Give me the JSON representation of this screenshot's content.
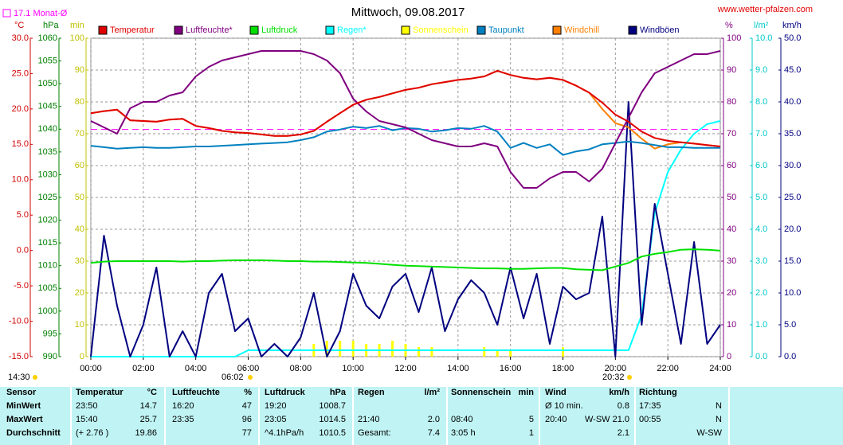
{
  "chart_data": {
    "type": "line",
    "title": "Mittwoch, 09.08.2017",
    "site": "www.wetter-pfalzen.com",
    "current_time": "14:30",
    "sunrise": "06:02",
    "sunset": "20:32",
    "month_avg": {
      "value": 17.1,
      "label": "17.1 Monat-Ø",
      "color": "#ff00ff",
      "axis": "temp"
    },
    "grid": true,
    "xlim": [
      0,
      24
    ],
    "xticks": [
      {
        "value": 0,
        "label": "00:00"
      },
      {
        "value": 2,
        "label": "02:00"
      },
      {
        "value": 4,
        "label": "04:00"
      },
      {
        "value": 6,
        "label": "06:00"
      },
      {
        "value": 8,
        "label": "08:00"
      },
      {
        "value": 10,
        "label": "10:00"
      },
      {
        "value": 12,
        "label": "12:00"
      },
      {
        "value": 14,
        "label": "14:00"
      },
      {
        "value": 16,
        "label": "16:00"
      },
      {
        "value": 18,
        "label": "18:00"
      },
      {
        "value": 20,
        "label": "20:00"
      },
      {
        "value": 22,
        "label": "22:00"
      },
      {
        "value": 24,
        "label": "24:00"
      }
    ],
    "axes": {
      "temp": {
        "label": "°C",
        "color": "#d00000",
        "ylim": [
          -15,
          30
        ],
        "yticks": [
          {
            "value": 30,
            "label": "30.0"
          },
          {
            "value": 25,
            "label": "25.0"
          },
          {
            "value": 20,
            "label": "20.0"
          },
          {
            "value": 15,
            "label": "15.0"
          },
          {
            "value": 10,
            "label": "10.0"
          },
          {
            "value": 5,
            "label": "5.0"
          },
          {
            "value": 0,
            "label": "0.0"
          },
          {
            "value": -5,
            "label": "-5.0"
          },
          {
            "value": -10,
            "label": "-10.0"
          },
          {
            "value": -15,
            "label": "-15.0"
          }
        ]
      },
      "press": {
        "label": "hPa",
        "color": "#008000",
        "ylim": [
          990,
          1060
        ],
        "yticks": [
          1060,
          1055,
          1050,
          1045,
          1040,
          1035,
          1030,
          1025,
          1020,
          1015,
          1010,
          1005,
          1000,
          995,
          990
        ]
      },
      "min": {
        "label": "min",
        "color": "#c0c000",
        "ylim": [
          0,
          100
        ],
        "yticks": [
          100,
          90,
          80,
          70,
          60,
          50,
          40,
          30,
          20,
          10,
          0
        ]
      },
      "pct": {
        "label": "%",
        "color": "#800080",
        "ylim": [
          0,
          100
        ],
        "yticks": [
          100,
          90,
          80,
          70,
          60,
          50,
          40,
          30,
          20,
          10,
          0
        ]
      },
      "rain": {
        "label": "l/m²",
        "color": "#00c8c8",
        "ylim": [
          0,
          10
        ],
        "yticks": [
          {
            "value": 10,
            "label": "10.0"
          },
          {
            "value": 9,
            "label": "9.0"
          },
          {
            "value": 8,
            "label": "8.0"
          },
          {
            "value": 7,
            "label": "7.0"
          },
          {
            "value": 6,
            "label": "6.0"
          },
          {
            "value": 5,
            "label": "5.0"
          },
          {
            "value": 4,
            "label": "4.0"
          },
          {
            "value": 3,
            "label": "3.0"
          },
          {
            "value": 2,
            "label": "2.0"
          },
          {
            "value": 1,
            "label": "1.0"
          },
          {
            "value": 0,
            "label": "0.0"
          }
        ]
      },
      "wind": {
        "label": "km/h",
        "color": "#000080",
        "ylim": [
          0,
          50
        ],
        "yticks": [
          {
            "value": 50,
            "label": "50.0"
          },
          {
            "value": 45,
            "label": "45.0"
          },
          {
            "value": 40,
            "label": "40.0"
          },
          {
            "value": 35,
            "label": "35.0"
          },
          {
            "value": 30,
            "label": "30.0"
          },
          {
            "value": 25,
            "label": "25.0"
          },
          {
            "value": 20,
            "label": "20.0"
          },
          {
            "value": 15,
            "label": "15.0"
          },
          {
            "value": 10,
            "label": "10.0"
          },
          {
            "value": 5,
            "label": "5.0"
          },
          {
            "value": 0,
            "label": "0.0"
          }
        ]
      }
    },
    "x": [
      0,
      0.5,
      1,
      1.5,
      2,
      2.5,
      3,
      3.5,
      4,
      4.5,
      5,
      5.5,
      6,
      6.5,
      7,
      7.5,
      8,
      8.5,
      9,
      9.5,
      10,
      10.5,
      11,
      11.5,
      12,
      12.5,
      13,
      13.5,
      14,
      14.5,
      15,
      15.5,
      16,
      16.5,
      17,
      17.5,
      18,
      18.5,
      19,
      19.5,
      20,
      20.5,
      21,
      21.5,
      22,
      22.5,
      23,
      23.5,
      24
    ],
    "series": [
      {
        "name": "Temperatur",
        "color": "#e00000",
        "axis": "temp",
        "kind": "line",
        "values": [
          19.4,
          19.7,
          19.9,
          18.4,
          18.3,
          18.2,
          18.5,
          18.6,
          17.6,
          17.3,
          16.9,
          16.7,
          16.6,
          16.4,
          16.2,
          16.2,
          16.4,
          16.9,
          18.2,
          19.4,
          20.6,
          21.3,
          21.7,
          22.2,
          22.7,
          23.0,
          23.5,
          23.8,
          24.1,
          24.3,
          24.6,
          25.4,
          24.8,
          24.4,
          24.2,
          24.4,
          24.1,
          23.3,
          22.3,
          20.9,
          19.2,
          18.2,
          16.8,
          15.9,
          15.5,
          15.3,
          15.1,
          14.9,
          14.7
        ]
      },
      {
        "name": "Luftfeuchte*",
        "color": "#800080",
        "axis": "pct",
        "kind": "line",
        "values": [
          74,
          72,
          70,
          78,
          80,
          80,
          82,
          83,
          88,
          91,
          93,
          94,
          95,
          96,
          96,
          96,
          96,
          95,
          93,
          89,
          81,
          77,
          74,
          73,
          72,
          70,
          68,
          67,
          66,
          66,
          67,
          66,
          58,
          53,
          53,
          56,
          58,
          58,
          55,
          59,
          67,
          75,
          83,
          89,
          91,
          93,
          95,
          95,
          96
        ]
      },
      {
        "name": "Luftdruck",
        "color": "#00e000",
        "axis": "press",
        "kind": "line",
        "values": [
          1010.6,
          1010.9,
          1011.0,
          1011.0,
          1011.0,
          1011.0,
          1011.0,
          1010.9,
          1011.0,
          1011.0,
          1011.1,
          1011.2,
          1011.2,
          1011.2,
          1011.1,
          1011.0,
          1011.0,
          1010.9,
          1010.9,
          1010.8,
          1010.7,
          1010.6,
          1010.4,
          1010.2,
          1010.0,
          1009.9,
          1009.8,
          1009.7,
          1009.6,
          1009.5,
          1009.4,
          1009.4,
          1009.3,
          1009.3,
          1009.4,
          1009.5,
          1009.5,
          1009.2,
          1009.1,
          1009.0,
          1009.8,
          1010.6,
          1012.0,
          1012.6,
          1013.0,
          1013.5,
          1013.6,
          1013.5,
          1013.3
        ]
      },
      {
        "name": "Regen*",
        "color": "#00ffff",
        "axis": "rain",
        "kind": "line",
        "values": [
          0,
          0,
          0,
          0,
          0,
          0,
          0,
          0,
          0,
          0,
          0,
          0,
          0.2,
          0.2,
          0.2,
          0.2,
          0.2,
          0.2,
          0.2,
          0.2,
          0.2,
          0.2,
          0.2,
          0.2,
          0.2,
          0.2,
          0.2,
          0.2,
          0.2,
          0.2,
          0.2,
          0.2,
          0.2,
          0.2,
          0.2,
          0.2,
          0.2,
          0.2,
          0.2,
          0.2,
          0.2,
          0.2,
          1.3,
          4.5,
          5.8,
          6.5,
          7.0,
          7.3,
          7.4
        ]
      },
      {
        "name": "Sonnenschein",
        "color": "#ffff00",
        "axis": "min",
        "kind": "bar",
        "values": [
          0,
          0,
          0,
          0,
          0,
          0,
          0,
          0,
          0,
          0,
          0,
          0,
          0,
          0,
          0,
          0,
          0,
          4,
          5,
          5,
          5,
          4,
          4,
          5,
          4,
          3,
          3,
          0,
          0,
          0,
          3,
          2,
          2,
          0,
          0,
          0,
          3,
          0,
          0,
          0,
          0,
          0,
          0,
          0,
          0,
          0,
          0,
          0,
          0
        ]
      },
      {
        "name": "Taupunkt",
        "color": "#0080c0",
        "axis": "temp",
        "kind": "line",
        "values": [
          14.8,
          14.6,
          14.4,
          14.5,
          14.6,
          14.5,
          14.5,
          14.6,
          14.7,
          14.7,
          14.8,
          14.9,
          15.0,
          15.1,
          15.2,
          15.3,
          15.6,
          16.0,
          16.8,
          17.1,
          17.5,
          17.3,
          17.6,
          17.0,
          17.3,
          17.2,
          16.8,
          17.0,
          17.3,
          17.2,
          17.6,
          16.8,
          14.5,
          15.2,
          14.5,
          15.0,
          13.5,
          14.0,
          14.3,
          15.0,
          15.2,
          15.4,
          15.2,
          14.9,
          14.6,
          14.6,
          14.5,
          14.5,
          14.5
        ]
      },
      {
        "name": "Windchill",
        "color": "#ff8000",
        "axis": "temp",
        "kind": "line",
        "values": [
          19.4,
          19.7,
          19.9,
          18.4,
          18.3,
          18.2,
          18.5,
          18.6,
          17.6,
          17.3,
          16.9,
          16.7,
          16.6,
          16.4,
          16.2,
          16.2,
          16.4,
          16.9,
          18.2,
          19.4,
          20.6,
          21.3,
          21.7,
          22.2,
          22.7,
          23.0,
          23.5,
          23.8,
          24.1,
          24.3,
          24.6,
          25.4,
          24.8,
          24.4,
          24.2,
          24.4,
          24.1,
          23.3,
          22.3,
          20.0,
          18.0,
          17.4,
          15.8,
          14.4,
          15.0,
          15.3,
          15.1,
          14.9,
          14.7
        ]
      },
      {
        "name": "Windböen",
        "color": "#000080",
        "axis": "wind",
        "kind": "line",
        "values": [
          0,
          19,
          8,
          0,
          5,
          14,
          0,
          4,
          0,
          10,
          13,
          4,
          6,
          0,
          2,
          0,
          3,
          10,
          0,
          4,
          13,
          8,
          6,
          11,
          13,
          7,
          14,
          4,
          9,
          12,
          10,
          5,
          14,
          6,
          13,
          2,
          11,
          9,
          10,
          22,
          0,
          40,
          5,
          24,
          13,
          2,
          18,
          2,
          5
        ]
      }
    ]
  },
  "table": {
    "header": [
      "Sensor",
      "Temperatur",
      "°C",
      "Luftfeuchte",
      "%",
      "Luftdruck",
      "hPa",
      "Regen",
      "l/m²",
      "Sonnenschein",
      "min",
      "Wind",
      "km/h",
      "Richtung",
      null
    ],
    "rows": [
      [
        "MinWert",
        "23:50",
        "14.7",
        "16:20",
        "47",
        "19:20",
        "1008.7",
        null,
        null,
        null,
        null,
        "Ø 10 min.",
        "0.8",
        "17:35",
        "N"
      ],
      [
        "MaxWert",
        "15:40",
        "25.7",
        "23:35",
        "96",
        "23:05",
        "1014.5",
        "21:40",
        "2.0",
        "08:40",
        "5",
        "20:40",
        "W-SW 21.0",
        "00:55",
        "N"
      ],
      [
        "Durchschnitt",
        "(+ 2.76 )",
        "19.86",
        null,
        "77",
        "^4.1hPa/h",
        "1010.5",
        "Gesamt:",
        "7.4",
        "3:05 h",
        "1",
        null,
        "2.1",
        null,
        "W-SW"
      ]
    ]
  }
}
